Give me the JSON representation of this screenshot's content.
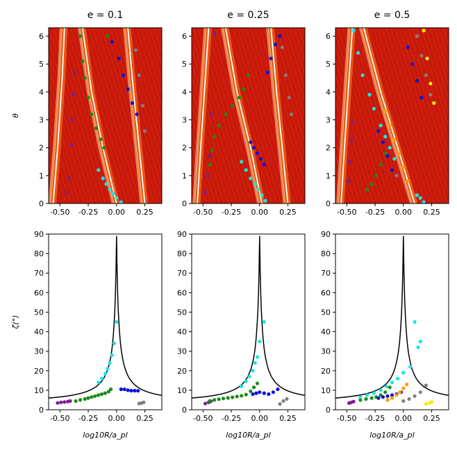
{
  "figure": {
    "background": "#ffffff",
    "heatmap_base": "#c8180a",
    "heatmap_stripe": "#ff8a1e",
    "heatmap_stripe_bright": "#ffe7a8",
    "white_curve": "#ffffff",
    "marker_colors": {
      "purple": "#7b1e8f",
      "green": "#1a8a1a",
      "blue": "#0b12d6",
      "cyan": "#19e6e6",
      "gray": "#808080",
      "orange": "#ff9a00",
      "yellow": "#f5ea14"
    },
    "column_titles": [
      "e = 0.1",
      "e = 0.25",
      "e = 0.5"
    ],
    "row_ylabels": {
      "top": "θ",
      "bottom": "ζ(°)"
    },
    "xlabels": [
      "log10R/a_pl",
      "log10R/a_pl",
      "log10R/a_pl"
    ]
  },
  "chart_data": [
    {
      "type": "heatmap",
      "panel": "top-left",
      "title": "e = 0.1",
      "ylabel": "θ",
      "xlabel": "",
      "xlim": [
        -0.6,
        0.4
      ],
      "ylim": [
        0,
        6.3
      ],
      "xticks": [
        "-0.50",
        "-0.25",
        "0.00",
        "0.25"
      ],
      "yticks": [
        "0",
        "1",
        "2",
        "3",
        "4",
        "5",
        "6"
      ],
      "white_curves": [
        [
          [
            -0.56,
            0
          ],
          [
            -0.52,
            2
          ],
          [
            -0.48,
            4.5
          ],
          [
            -0.46,
            6.3
          ]
        ],
        [
          [
            0.0,
            0
          ],
          [
            -0.12,
            2
          ],
          [
            -0.22,
            4
          ],
          [
            -0.3,
            6.3
          ]
        ],
        [
          [
            0.25,
            0
          ],
          [
            0.2,
            2
          ],
          [
            0.15,
            4
          ],
          [
            0.1,
            6.3
          ]
        ]
      ],
      "series": [
        {
          "name": "purple",
          "x": [
            -0.44,
            -0.42,
            -0.4,
            -0.39,
            -0.38,
            -0.37
          ],
          "y": [
            0.4,
            0.9,
            2.1,
            3.0,
            3.9,
            4.7
          ]
        },
        {
          "name": "green",
          "x": [
            -0.32,
            -0.3,
            -0.28,
            -0.25,
            -0.22,
            -0.18,
            -0.14,
            -0.11,
            -0.08
          ],
          "y": [
            6.0,
            5.1,
            4.5,
            3.8,
            3.2,
            2.7,
            2.3,
            2.0,
            6.0
          ]
        },
        {
          "name": "cyan",
          "x": [
            -0.16,
            -0.12,
            -0.09,
            -0.06,
            -0.03,
            0.0,
            0.04
          ],
          "y": [
            1.2,
            0.9,
            0.7,
            0.5,
            0.35,
            0.2,
            0.05
          ]
        },
        {
          "name": "blue",
          "x": [
            -0.04,
            0.02,
            0.06,
            0.1,
            0.14,
            0.18
          ],
          "y": [
            5.8,
            5.2,
            4.6,
            4.1,
            3.6,
            3.2
          ]
        },
        {
          "name": "gray",
          "x": [
            0.17,
            0.2,
            0.23,
            0.25
          ],
          "y": [
            5.5,
            4.6,
            3.5,
            2.6
          ]
        }
      ]
    },
    {
      "type": "heatmap",
      "panel": "top-middle",
      "title": "e = 0.25",
      "ylabel": "",
      "xlabel": "",
      "xlim": [
        -0.6,
        0.4
      ],
      "ylim": [
        0,
        6.3
      ],
      "xticks": [
        "-0.50",
        "-0.25",
        "0.00",
        "0.25"
      ],
      "yticks": [
        "0",
        "1",
        "2",
        "3",
        "4",
        "5",
        "6"
      ],
      "white_curves": [
        [
          [
            -0.55,
            0
          ],
          [
            -0.52,
            2
          ],
          [
            -0.48,
            4.5
          ],
          [
            -0.45,
            6.3
          ]
        ],
        [
          [
            0.02,
            0
          ],
          [
            -0.08,
            2
          ],
          [
            -0.2,
            4
          ],
          [
            -0.3,
            6.3
          ]
        ],
        [
          [
            0.25,
            0
          ],
          [
            0.2,
            2
          ],
          [
            0.15,
            4
          ],
          [
            0.1,
            6.3
          ]
        ]
      ],
      "series": [
        {
          "name": "purple",
          "x": [
            -0.48,
            -0.46,
            -0.44,
            -0.43,
            -0.4
          ],
          "y": [
            0.4,
            1.0,
            1.7,
            3.2,
            6.1
          ]
        },
        {
          "name": "green",
          "x": [
            -0.44,
            -0.42,
            -0.4,
            -0.36,
            -0.3,
            -0.24,
            -0.18,
            -0.14,
            -0.1
          ],
          "y": [
            1.4,
            1.9,
            2.4,
            2.8,
            3.2,
            3.5,
            3.8,
            4.1,
            4.6
          ]
        },
        {
          "name": "cyan",
          "x": [
            -0.16,
            -0.12,
            -0.08,
            -0.04,
            -0.01,
            0.02,
            0.05
          ],
          "y": [
            1.5,
            1.2,
            0.9,
            0.7,
            0.5,
            0.3,
            0.1
          ]
        },
        {
          "name": "blue",
          "x": [
            -0.08,
            -0.05,
            -0.02,
            0.01,
            0.04,
            0.07,
            0.1,
            0.14,
            0.18
          ],
          "y": [
            2.2,
            2.0,
            1.8,
            1.6,
            1.4,
            4.7,
            5.2,
            5.7,
            6.0
          ]
        },
        {
          "name": "gray",
          "x": [
            0.2,
            0.23,
            0.26,
            0.28
          ],
          "y": [
            5.6,
            4.6,
            3.8,
            3.2
          ]
        }
      ]
    },
    {
      "type": "heatmap",
      "panel": "top-right",
      "title": "e = 0.5",
      "ylabel": "",
      "xlabel": "",
      "xlim": [
        -0.6,
        0.4
      ],
      "ylim": [
        0,
        6.3
      ],
      "xticks": [
        "-0.50",
        "-0.25",
        "0.00",
        "0.25"
      ],
      "yticks": [
        "0",
        "1",
        "2",
        "3",
        "4",
        "5",
        "6"
      ],
      "white_curves": [
        [
          [
            -0.55,
            0
          ],
          [
            -0.52,
            2
          ],
          [
            -0.48,
            4.5
          ],
          [
            -0.45,
            6.3
          ]
        ],
        [
          [
            0.1,
            0
          ],
          [
            -0.05,
            2
          ],
          [
            -0.2,
            4
          ],
          [
            -0.35,
            6.3
          ]
        ]
      ],
      "series": [
        {
          "name": "purple",
          "x": [
            -0.48,
            -0.47,
            -0.46,
            -0.45
          ],
          "y": [
            0.8,
            1.5,
            2.3,
            2.9
          ]
        },
        {
          "name": "green",
          "x": [
            -0.32,
            -0.28,
            -0.24,
            -0.2,
            -0.16
          ],
          "y": [
            0.5,
            0.7,
            1.0,
            1.4,
            1.8
          ]
        },
        {
          "name": "cyan",
          "x": [
            -0.44,
            -0.4,
            -0.36,
            -0.3,
            -0.26,
            -0.2,
            -0.16,
            -0.12,
            -0.08,
            0.12,
            0.15,
            0.18
          ],
          "y": [
            6.2,
            5.4,
            4.6,
            3.9,
            3.4,
            2.8,
            2.4,
            2.0,
            1.6,
            0.3,
            0.2,
            0.05
          ]
        },
        {
          "name": "blue",
          "x": [
            -0.22,
            -0.18,
            -0.14,
            -0.1,
            0.04,
            0.08,
            0.12,
            0.16
          ],
          "y": [
            2.6,
            2.2,
            1.7,
            1.2,
            5.6,
            5.0,
            4.4,
            3.8
          ]
        },
        {
          "name": "orange",
          "x": [
            -0.16,
            -0.12,
            -0.08,
            -0.04,
            0.0,
            0.04
          ],
          "y": [
            3.3,
            2.8,
            2.3,
            1.8,
            1.3,
            0.8
          ]
        },
        {
          "name": "gray",
          "x": [
            -0.06,
            0.12,
            0.16,
            0.2,
            0.24
          ],
          "y": [
            1.0,
            6.0,
            5.3,
            4.6,
            3.9
          ]
        },
        {
          "name": "yellow",
          "x": [
            0.18,
            0.21,
            0.24,
            0.27
          ],
          "y": [
            6.2,
            5.2,
            4.3,
            3.6
          ]
        }
      ]
    },
    {
      "type": "scatter",
      "panel": "bottom-left",
      "title": "",
      "ylabel": "ζ(°)",
      "xlabel": "log10R/a_pl",
      "xlim": [
        -0.6,
        0.4
      ],
      "ylim": [
        0,
        90
      ],
      "xticks": [
        "-0.50",
        "-0.25",
        "0.00",
        "0.25"
      ],
      "yticks": [
        "0",
        "10",
        "20",
        "30",
        "40",
        "50",
        "60",
        "70",
        "80",
        "90"
      ],
      "curve": "cusp",
      "series": [
        {
          "name": "purple",
          "x": [
            -0.52,
            -0.49,
            -0.46,
            -0.43,
            -0.41
          ],
          "y": [
            3.5,
            3.8,
            4.0,
            4.2,
            4.5
          ]
        },
        {
          "name": "green",
          "x": [
            -0.36,
            -0.32,
            -0.28,
            -0.25,
            -0.22,
            -0.19,
            -0.16,
            -0.13,
            -0.1,
            -0.07,
            -0.05
          ],
          "y": [
            4.5,
            5.0,
            5.5,
            6.0,
            6.5,
            7.0,
            7.5,
            8.0,
            8.5,
            9.3,
            10.5
          ]
        },
        {
          "name": "cyan",
          "x": [
            -0.16,
            -0.13,
            -0.1,
            -0.08,
            -0.06,
            -0.04,
            -0.02,
            0.0
          ],
          "y": [
            14.0,
            16.0,
            18.5,
            21.0,
            24.0,
            28.0,
            34.0,
            45.0
          ]
        },
        {
          "name": "blue",
          "x": [
            0.04,
            0.07,
            0.1,
            0.13,
            0.16,
            0.19
          ],
          "y": [
            10.5,
            10.5,
            10.0,
            9.8,
            9.8,
            9.7
          ]
        },
        {
          "name": "gray",
          "x": [
            0.2,
            0.22,
            0.24
          ],
          "y": [
            3.2,
            3.4,
            3.8
          ]
        }
      ]
    },
    {
      "type": "scatter",
      "panel": "bottom-middle",
      "title": "",
      "ylabel": "",
      "xlabel": "log10R/a_pl",
      "xlim": [
        -0.6,
        0.4
      ],
      "ylim": [
        0,
        90
      ],
      "xticks": [
        "-0.50",
        "-0.25",
        "0.00",
        "0.25"
      ],
      "yticks": [
        "0",
        "10",
        "20",
        "30",
        "40",
        "50",
        "60",
        "70",
        "80",
        "90"
      ],
      "curve": "cusp",
      "series": [
        {
          "name": "purple",
          "x": [
            -0.48,
            -0.45,
            -0.43
          ],
          "y": [
            3.2,
            3.8,
            4.3
          ]
        },
        {
          "name": "green",
          "x": [
            -0.44,
            -0.4,
            -0.36,
            -0.32,
            -0.28,
            -0.24,
            -0.2,
            -0.16,
            -0.12,
            -0.08,
            -0.05,
            -0.02
          ],
          "y": [
            4.5,
            5.0,
            5.4,
            5.8,
            6.1,
            6.4,
            6.8,
            7.2,
            7.8,
            9.5,
            11.5,
            13.5
          ]
        },
        {
          "name": "cyan",
          "x": [
            -0.16,
            -0.12,
            -0.09,
            -0.06,
            -0.04,
            -0.02,
            0.0,
            0.04
          ],
          "y": [
            12.0,
            14.5,
            17.0,
            20.0,
            24.0,
            27.0,
            35.0,
            45.0
          ]
        },
        {
          "name": "blue",
          "x": [
            -0.06,
            -0.03,
            0.0,
            0.04,
            0.08,
            0.12,
            0.16
          ],
          "y": [
            8.0,
            8.5,
            9.0,
            8.5,
            8.0,
            9.0,
            10.5
          ]
        },
        {
          "name": "gray",
          "x": [
            0.18,
            0.21,
            0.24
          ],
          "y": [
            3.0,
            4.5,
            5.5
          ]
        }
      ]
    },
    {
      "type": "scatter",
      "panel": "bottom-right",
      "title": "",
      "ylabel": "",
      "xlabel": "log10R/a_pl",
      "xlim": [
        -0.6,
        0.4
      ],
      "ylim": [
        0,
        90
      ],
      "xticks": [
        "-0.50",
        "-0.25",
        "0.00",
        "0.25"
      ],
      "yticks": [
        "0",
        "10",
        "20",
        "30",
        "40",
        "50",
        "60",
        "70",
        "80",
        "90"
      ],
      "curve": "cusp",
      "series": [
        {
          "name": "purple",
          "x": [
            -0.48,
            -0.46,
            -0.44
          ],
          "y": [
            3.4,
            3.8,
            4.2
          ]
        },
        {
          "name": "green",
          "x": [
            -0.38,
            -0.33,
            -0.28,
            -0.24,
            -0.2,
            -0.16,
            -0.12
          ],
          "y": [
            5.0,
            5.5,
            6.0,
            6.5,
            7.5,
            9.0,
            11.5
          ]
        },
        {
          "name": "cyan",
          "x": [
            -0.38,
            -0.32,
            -0.26,
            -0.2,
            -0.15,
            -0.1,
            -0.05,
            0.0,
            0.06,
            0.1,
            0.13,
            0.15
          ],
          "y": [
            6.5,
            7.5,
            8.5,
            10.0,
            12.0,
            14.0,
            16.0,
            19.0,
            22.0,
            45.0,
            32.0,
            35.0
          ]
        },
        {
          "name": "blue",
          "x": [
            -0.22,
            -0.18,
            -0.14,
            -0.1,
            -0.06,
            -0.02
          ],
          "y": [
            6.0,
            6.5,
            7.0,
            7.5,
            8.0,
            9.0
          ]
        },
        {
          "name": "orange",
          "x": [
            -0.14,
            -0.1,
            -0.06,
            -0.03,
            0.0,
            0.03
          ],
          "y": [
            5.0,
            6.0,
            7.5,
            9.0,
            11.0,
            13.0
          ]
        },
        {
          "name": "gray",
          "x": [
            0.0,
            0.05,
            0.1,
            0.15,
            0.2
          ],
          "y": [
            4.5,
            5.5,
            7.0,
            9.0,
            12.5
          ]
        },
        {
          "name": "yellow",
          "x": [
            0.2,
            0.23,
            0.25
          ],
          "y": [
            3.0,
            3.5,
            4.0
          ]
        }
      ]
    }
  ]
}
